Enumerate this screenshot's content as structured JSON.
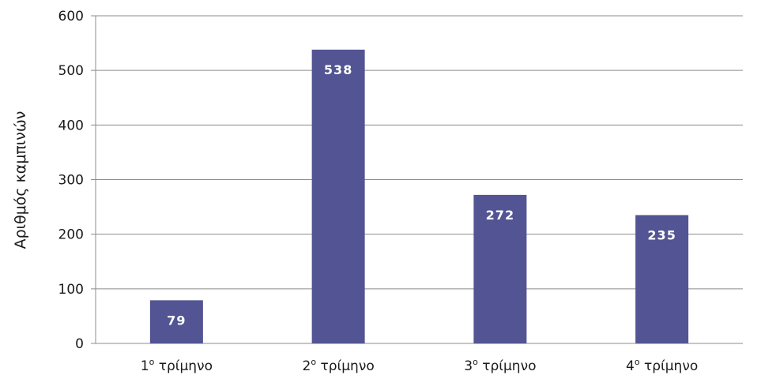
{
  "chart_data": {
    "type": "bar",
    "categories": [
      {
        "num": "1",
        "sup": "ο",
        "text": " τρίμηνο"
      },
      {
        "num": "2",
        "sup": "ο",
        "text": " τρίμηνο"
      },
      {
        "num": "3",
        "sup": "ο",
        "text": " τρίμηνο"
      },
      {
        "num": "4",
        "sup": "ο",
        "text": " τρίμηνο"
      }
    ],
    "values": [
      79,
      538,
      272,
      235
    ],
    "data_labels": [
      "79",
      "538",
      "272",
      "235"
    ],
    "ylabel": "Αριθμός καμπινών",
    "ylim": [
      0,
      600
    ],
    "yticks": [
      0,
      100,
      200,
      300,
      400,
      500,
      600
    ],
    "grid": true,
    "bar_color": "#525493"
  }
}
